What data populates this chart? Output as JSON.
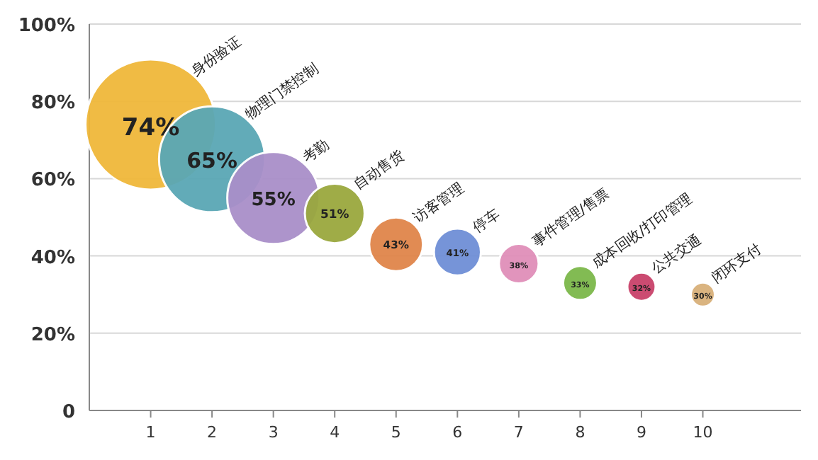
{
  "chart_data": {
    "type": "bubble",
    "x": [
      1,
      2,
      3,
      4,
      5,
      6,
      7,
      8,
      9,
      10
    ],
    "values": [
      74,
      65,
      55,
      51,
      43,
      41,
      38,
      33,
      32,
      30
    ],
    "sizes": [
      1,
      0.66,
      0.5,
      0.21,
      0.17,
      0.13,
      0.093,
      0.068,
      0.047,
      0.034
    ],
    "colors": [
      "#f0b83a",
      "#5aa7b5",
      "#a98fc9",
      "#9aa83e",
      "#e0854a",
      "#6f8fd6",
      "#e08fb9",
      "#7cb84a",
      "#c9426a",
      "#d9b07a"
    ],
    "value_labels": [
      "74%",
      "65%",
      "55%",
      "51%",
      "43%",
      "41%",
      "38%",
      "33%",
      "32%",
      "30%"
    ],
    "annotations": [
      "身份验证",
      "物理门禁控制",
      "考勤",
      "自动售货",
      "访客管理",
      "停车",
      "事件管理/售票",
      "成本回收/打印管理",
      "公共交通",
      "闭环支付"
    ],
    "xlim": [
      0,
      11.6
    ],
    "xticks": [
      1,
      2,
      3,
      4,
      5,
      6,
      7,
      8,
      9,
      10
    ],
    "ylim": [
      0,
      100
    ],
    "yticks": [
      0,
      {
        "value": 20,
        "label": "20%"
      },
      {
        "value": 40,
        "label": "40%"
      },
      {
        "value": 60,
        "label": "60%"
      },
      {
        "value": 80,
        "label": "80%"
      },
      {
        "value": 100,
        "label": "100%"
      }
    ],
    "grid": "y"
  }
}
